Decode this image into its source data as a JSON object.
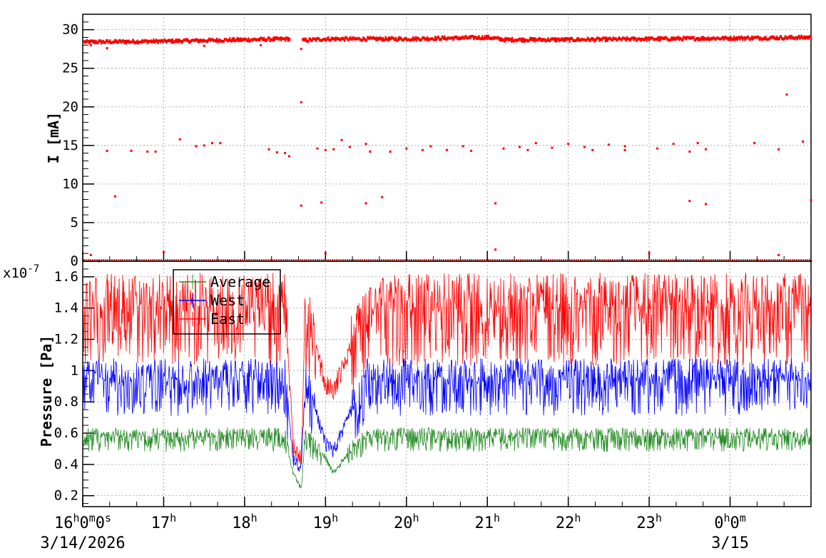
{
  "chart_data": [
    {
      "type": "scatter",
      "ylabel": "I [mA]",
      "ylim": [
        0,
        32
      ],
      "yticks": [
        "0",
        "5",
        "10",
        "15",
        "20",
        "25",
        "30"
      ],
      "grid": true,
      "x_range_hours": [
        16.0,
        25.0
      ],
      "series": [
        {
          "color": "#ff0000",
          "main_band": [
            [
              16.0,
              28.4
            ],
            [
              17.0,
              28.5
            ],
            [
              18.0,
              28.7
            ],
            [
              18.55,
              28.8
            ],
            [
              18.7,
              28.6
            ],
            [
              19.0,
              28.8
            ],
            [
              20.0,
              28.8
            ],
            [
              21.0,
              29.0
            ],
            [
              21.2,
              28.7
            ],
            [
              22.0,
              28.7
            ],
            [
              23.0,
              28.8
            ],
            [
              24.0,
              28.9
            ],
            [
              25.0,
              29.0
            ]
          ],
          "gap": [
            18.55,
            18.7
          ],
          "outliers": [
            [
              16.3,
              27.6
            ],
            [
              16.1,
              28.0
            ],
            [
              17.5,
              27.9
            ],
            [
              18.2,
              28.0
            ],
            [
              18.7,
              27.5
            ],
            [
              18.7,
              20.6
            ],
            [
              18.7,
              7.2
            ],
            [
              16.1,
              0.8
            ],
            [
              16.2,
              0.0
            ],
            [
              16.3,
              14.3
            ],
            [
              16.4,
              8.4
            ],
            [
              16.6,
              14.3
            ],
            [
              16.8,
              14.2
            ],
            [
              16.9,
              14.2
            ],
            [
              17.0,
              1.2
            ],
            [
              17.2,
              15.8
            ],
            [
              17.4,
              14.9
            ],
            [
              17.5,
              15.0
            ],
            [
              17.6,
              15.3
            ],
            [
              17.7,
              15.3
            ],
            [
              17.8,
              0.0
            ],
            [
              18.3,
              14.5
            ],
            [
              18.4,
              14.1
            ],
            [
              18.5,
              14.0
            ],
            [
              18.55,
              13.6
            ],
            [
              18.9,
              14.6
            ],
            [
              18.95,
              7.6
            ],
            [
              19.0,
              14.4
            ],
            [
              19.0,
              1.0
            ],
            [
              19.1,
              14.5
            ],
            [
              19.2,
              15.7
            ],
            [
              19.3,
              14.8
            ],
            [
              19.5,
              15.2
            ],
            [
              19.5,
              7.5
            ],
            [
              19.55,
              14.2
            ],
            [
              19.7,
              8.3
            ],
            [
              19.8,
              14.2
            ],
            [
              20.0,
              14.6
            ],
            [
              20.2,
              14.4
            ],
            [
              20.3,
              14.9
            ],
            [
              20.5,
              14.4
            ],
            [
              20.7,
              14.9
            ],
            [
              20.8,
              14.3
            ],
            [
              21.1,
              7.5
            ],
            [
              21.1,
              1.5
            ],
            [
              21.2,
              14.6
            ],
            [
              21.4,
              14.8
            ],
            [
              21.5,
              14.4
            ],
            [
              21.6,
              15.3
            ],
            [
              21.8,
              14.7
            ],
            [
              22.0,
              15.2
            ],
            [
              22.2,
              14.8
            ],
            [
              22.3,
              14.4
            ],
            [
              22.5,
              15.1
            ],
            [
              22.7,
              14.4
            ],
            [
              22.7,
              14.9
            ],
            [
              23.0,
              1.0
            ],
            [
              23.1,
              14.6
            ],
            [
              23.3,
              15.2
            ],
            [
              23.5,
              14.2
            ],
            [
              23.5,
              7.8
            ],
            [
              23.6,
              15.3
            ],
            [
              23.7,
              7.4
            ],
            [
              23.7,
              14.5
            ],
            [
              24.3,
              15.3
            ],
            [
              24.6,
              0.8
            ],
            [
              24.6,
              14.5
            ],
            [
              24.7,
              21.6
            ],
            [
              24.9,
              15.5
            ],
            [
              25.0,
              7.9
            ],
            [
              25.0,
              0.0
            ]
          ]
        }
      ]
    },
    {
      "type": "line",
      "ylabel": "Pressure [Pa]",
      "y_multiplier": "x10",
      "y_multiplier_exp": "-7",
      "ylim": [
        0.13,
        1.7
      ],
      "yticks": [
        "0.2",
        "0.4",
        "0.6",
        "0.8",
        "1",
        "1.2",
        "1.4",
        "1.6"
      ],
      "grid": true,
      "legend_placement": "top-left",
      "x_range_hours": [
        16.0,
        25.0
      ],
      "series": [
        {
          "name": "Average",
          "color": "#228b22",
          "baseline": 0.59,
          "spread": 0.11,
          "dip": [
            [
              18.5,
              0.59
            ],
            [
              18.6,
              0.35
            ],
            [
              18.7,
              0.25
            ],
            [
              18.75,
              0.59
            ],
            [
              19.0,
              0.45
            ],
            [
              19.1,
              0.35
            ],
            [
              19.3,
              0.5
            ],
            [
              19.5,
              0.58
            ]
          ]
        },
        {
          "name": "West",
          "color": "#0000ff",
          "baseline": 0.97,
          "spread": 0.26,
          "dip": [
            [
              18.5,
              0.97
            ],
            [
              18.6,
              0.45
            ],
            [
              18.7,
              0.38
            ],
            [
              18.75,
              0.97
            ],
            [
              19.0,
              0.55
            ],
            [
              19.1,
              0.5
            ],
            [
              19.3,
              0.75
            ],
            [
              19.5,
              0.92
            ]
          ]
        },
        {
          "name": "East",
          "color": "#ff0000",
          "baseline": 1.45,
          "spread": 0.42,
          "dip": [
            [
              18.5,
              1.45
            ],
            [
              18.6,
              0.55
            ],
            [
              18.7,
              0.45
            ],
            [
              18.75,
              1.4
            ],
            [
              19.0,
              0.95
            ],
            [
              19.1,
              0.9
            ],
            [
              19.3,
              1.15
            ],
            [
              19.5,
              1.4
            ]
          ]
        }
      ]
    }
  ],
  "time_axis": {
    "ticks": [
      {
        "hours": 16,
        "h": "16",
        "suffix": "0",
        "suffix2": "0",
        "suffix3": "s"
      },
      {
        "hours": 17,
        "h": "17"
      },
      {
        "hours": 18,
        "h": "18"
      },
      {
        "hours": 19,
        "h": "19"
      },
      {
        "hours": 20,
        "h": "20"
      },
      {
        "hours": 21,
        "h": "21"
      },
      {
        "hours": 22,
        "h": "22"
      },
      {
        "hours": 23,
        "h": "23"
      },
      {
        "hours": 24,
        "h": "0",
        "suffix": "0"
      }
    ],
    "start_date": "3/14/2026",
    "next_date": "3/15"
  }
}
